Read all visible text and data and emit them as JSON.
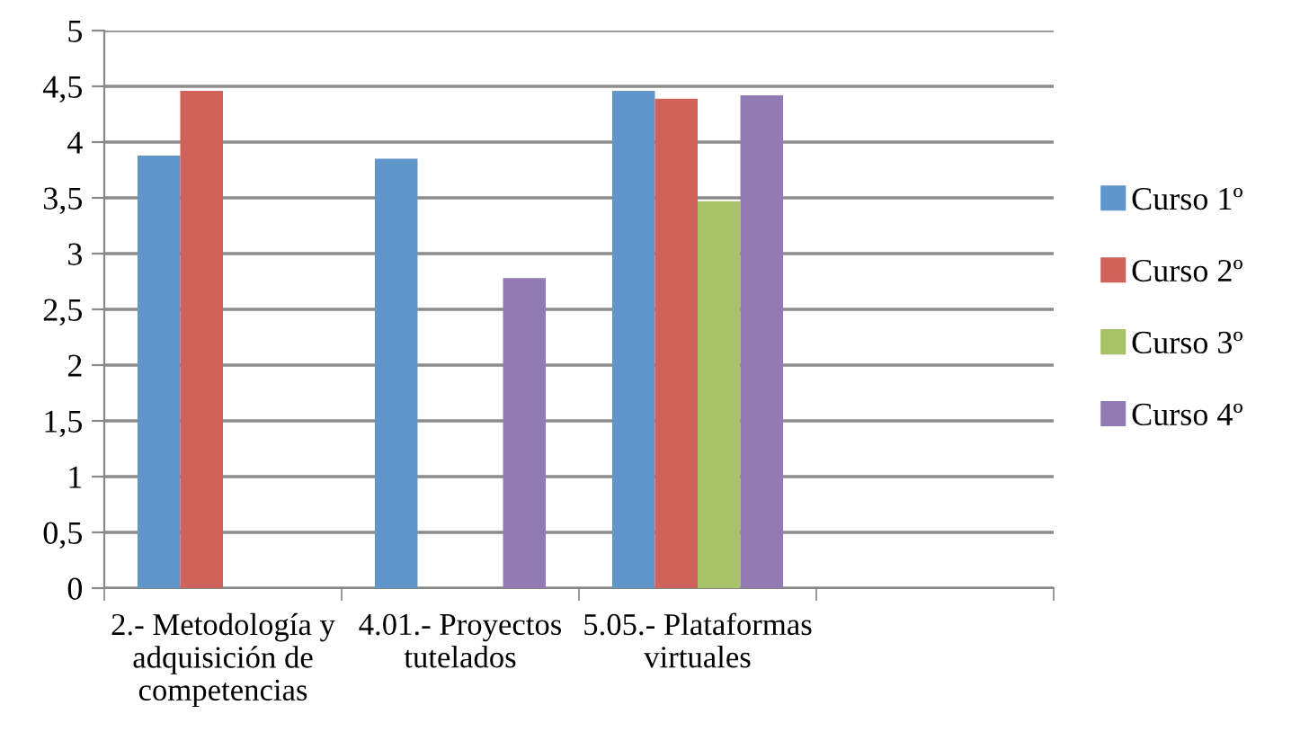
{
  "chart_data": {
    "type": "bar",
    "categories": [
      "2.- Metodología y adquisición de competencias",
      "4.01.- Proyectos tutelados",
      "5.05.- Plataformas virtuales",
      null
    ],
    "series": [
      {
        "name": "Curso 1º",
        "color": "#6096c9",
        "values": [
          3.88,
          3.85,
          4.46,
          null
        ]
      },
      {
        "name": "Curso 2º",
        "color": "#cf635c",
        "values": [
          4.46,
          null,
          4.39,
          null
        ]
      },
      {
        "name": "Curso 3º",
        "color": "#a8c26a",
        "values": [
          null,
          null,
          3.47,
          null
        ]
      },
      {
        "name": "Curso 4º",
        "color": "#917bb2",
        "values": [
          null,
          2.78,
          4.42,
          null
        ]
      }
    ],
    "ylim": [
      0,
      5
    ],
    "yticks": [
      0,
      {
        "value": 0.5,
        "label": "0,5"
      },
      1,
      {
        "value": 1.5,
        "label": "1,5"
      },
      2,
      {
        "value": 2.5,
        "label": "2,5"
      },
      3,
      {
        "value": 3.5,
        "label": "3,5"
      },
      4,
      {
        "value": 4.5,
        "label": "4,5"
      },
      5
    ],
    "grid": "y",
    "legend": "right"
  }
}
